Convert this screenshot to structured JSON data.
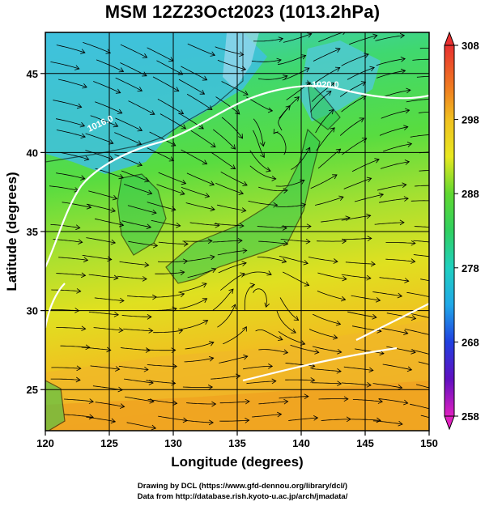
{
  "title": "MSM 12Z23Oct2023 (1013.2hPa)",
  "axes": {
    "xlabel": "Longitude (degrees)",
    "ylabel": "Latitude  (degrees)",
    "xlim": [
      120,
      150
    ],
    "ylim": [
      22.4,
      47.6
    ],
    "xticks": [
      "120",
      "125",
      "130",
      "135",
      "140",
      "145",
      "150"
    ],
    "yticks": [
      "25",
      "30",
      "35",
      "40",
      "45"
    ],
    "grid": true
  },
  "colorbar": {
    "ticks": [
      "308",
      "298",
      "288",
      "278",
      "268",
      "258"
    ],
    "range": [
      258,
      308
    ]
  },
  "contour_labels": [
    "1020.0",
    "1016.0"
  ],
  "credits": {
    "line1": "Drawing by DCL (https://www.gfd-dennou.org/library/dcl/)",
    "line2": "Data from http://database.rish.kyoto-u.ac.jp/arch/jmadata/"
  },
  "colors": {
    "cold": "#40c8e0",
    "mid": "#38d848",
    "warm": "#f0a020",
    "contour": "#ffffff",
    "streamline": "#000000"
  }
}
